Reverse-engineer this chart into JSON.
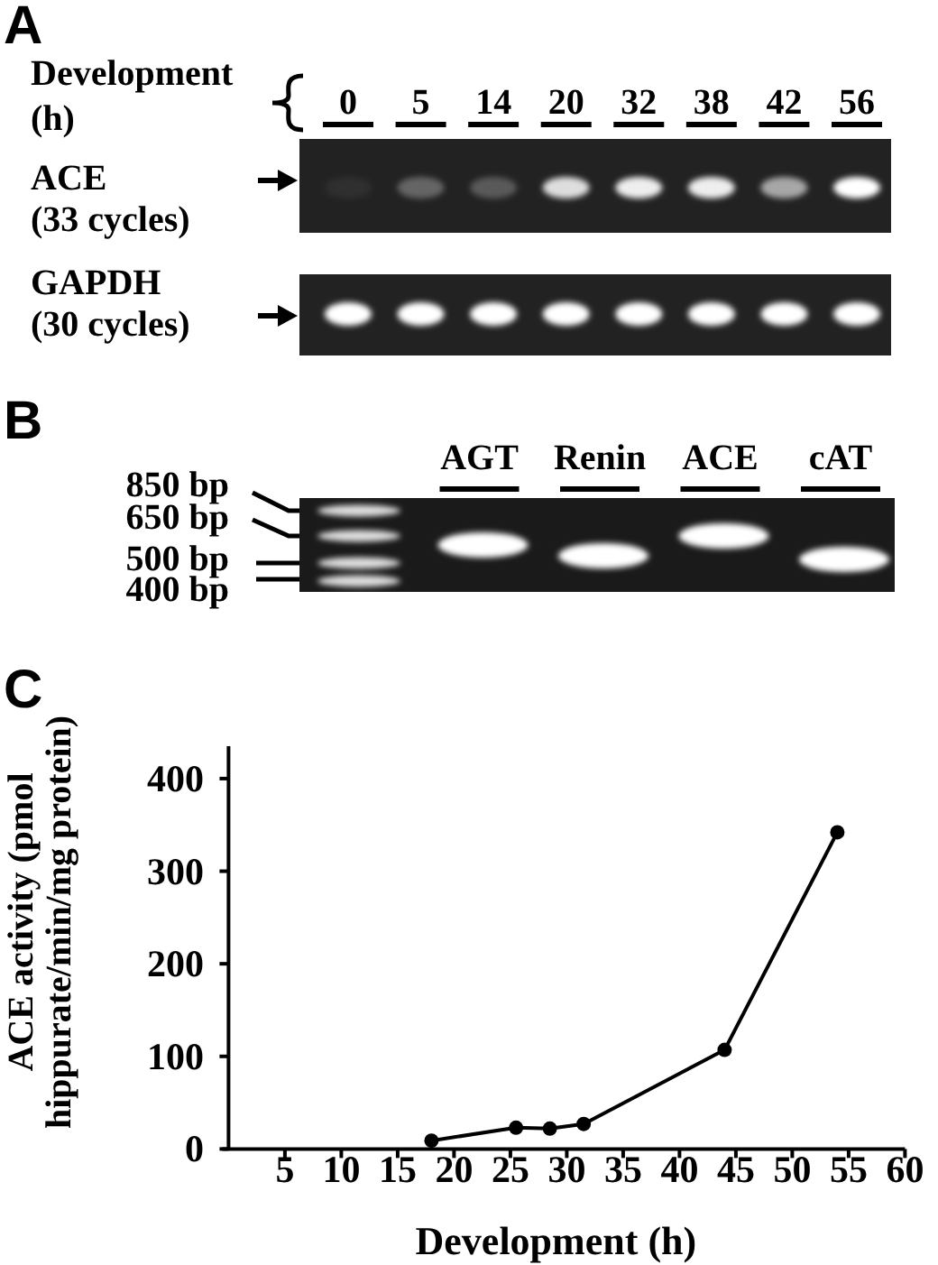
{
  "chart_data": [
    {
      "type": "other",
      "title": "A",
      "xlabel": "Development\n(h)",
      "categories": [
        "0",
        "5",
        "14",
        "20",
        "32",
        "38",
        "42",
        "56"
      ],
      "annotations": [
        "ACE\n(33 cycles)",
        "GAPDH\n(30 cycles)"
      ]
    },
    {
      "type": "other",
      "title": "B",
      "categories": [
        null,
        "AGT",
        "Renin",
        "ACE",
        "cAT"
      ],
      "annotations": [
        "850 bp",
        "650 bp",
        "500 bp",
        "400 bp"
      ]
    },
    {
      "type": "line",
      "title": "C",
      "xlabel": "Development (h)",
      "ylabel": "ACE activity (pmol\nhippurate/min/mg protein)",
      "x": [
        18,
        25.5,
        28.5,
        31.5,
        44,
        54
      ],
      "values": [
        9,
        23,
        22,
        27,
        107,
        342
      ],
      "color": "#000000",
      "marker": "circle",
      "xlim": [
        0,
        60
      ],
      "xticks": [
        5,
        10,
        15,
        20,
        25,
        30,
        35,
        40,
        45,
        50,
        55,
        60
      ],
      "ylim": [
        0,
        435
      ],
      "yticks": [
        0,
        100,
        200,
        300,
        400
      ]
    }
  ]
}
